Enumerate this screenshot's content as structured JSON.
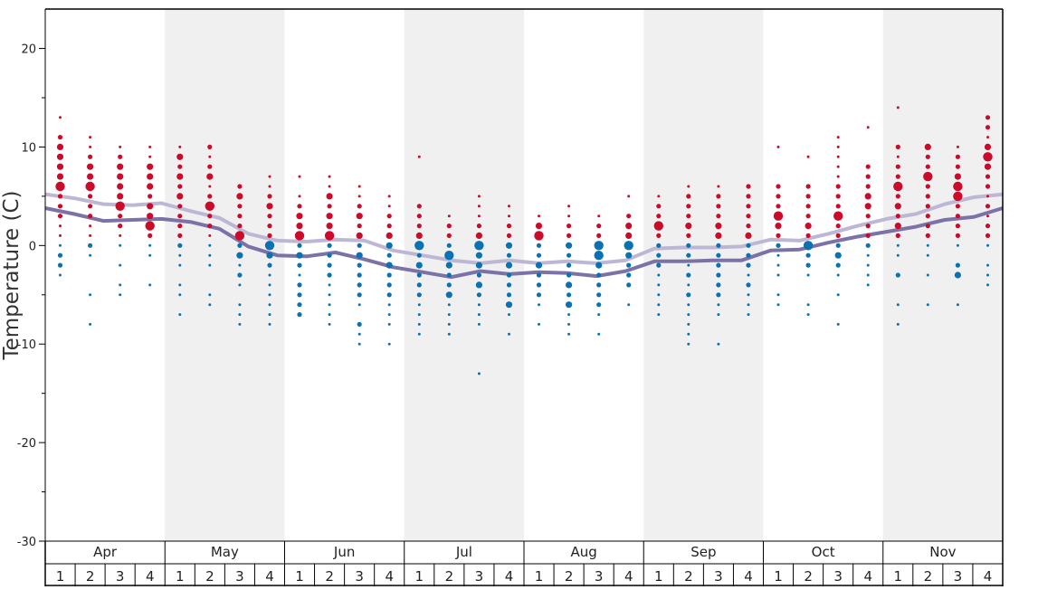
{
  "chart_data": {
    "type": "scatter",
    "ylabel": "Temperature (C)",
    "ylim": [
      -30,
      24
    ],
    "yticks": [
      20,
      10,
      0,
      -10,
      -20,
      -30
    ],
    "months": [
      "Apr",
      "May",
      "Jun",
      "Jul",
      "Aug",
      "Sep",
      "Oct",
      "Nov"
    ],
    "weeks": [
      "1",
      "2",
      "3",
      "4"
    ],
    "month_shading": [
      false,
      true,
      false,
      true,
      false,
      true,
      false,
      true
    ],
    "colors": {
      "warm": "#cc0a2a",
      "cold": "#0a72b3",
      "upper_line": "#bdb7d5",
      "lower_line": "#7d72a8",
      "shade": "#f0f0f0"
    },
    "upper_line": [
      5.2,
      4.8,
      4.2,
      4.1,
      4.3,
      3.5,
      2.8,
      1.2,
      0.5,
      0.4,
      0.6,
      0.5,
      -0.5,
      -1.0,
      -1.5,
      -1.8,
      -1.5,
      -1.8,
      -1.6,
      -1.8,
      -1.5,
      -0.3,
      -0.2,
      -0.2,
      -0.1,
      0.6,
      0.5,
      1.2,
      2.0,
      2.7,
      3.2,
      4.2,
      4.9,
      5.2
    ],
    "lower_line": [
      3.8,
      3.2,
      2.5,
      2.6,
      2.7,
      2.4,
      1.7,
      -0.1,
      -1.0,
      -1.1,
      -0.7,
      -1.4,
      -2.2,
      -2.7,
      -3.2,
      -2.6,
      -2.9,
      -2.7,
      -2.8,
      -3.1,
      -2.6,
      -1.6,
      -1.6,
      -1.5,
      -1.5,
      -0.5,
      -0.4,
      0.3,
      0.9,
      1.4,
      1.9,
      2.6,
      2.9,
      3.8
    ],
    "dot_columns": [
      {
        "w": "Apr 1",
        "warm": {
          "13": 1,
          "11": 2,
          "10": 3,
          "9": 3,
          "8": 3,
          "7": 3,
          "6": 4,
          "5": 2,
          "4": 2,
          "3": 2,
          "2": 1,
          "1": 1
        },
        "cold": {
          "0": 1,
          "-1": 2,
          "-2": 2,
          "-3": 1
        }
      },
      {
        "w": "Apr 2",
        "warm": {
          "11": 1,
          "10": 1,
          "9": 2,
          "8": 3,
          "7": 3,
          "6": 4,
          "5": 2,
          "4": 2,
          "3": 2,
          "2": 1,
          "1": 1
        },
        "cold": {
          "0": 2,
          "-1": 1,
          "-5": 1,
          "-8": 1
        }
      },
      {
        "w": "Apr 3",
        "warm": {
          "10": 1,
          "9": 2,
          "8": 3,
          "7": 3,
          "6": 3,
          "5": 3,
          "4": 4,
          "3": 2,
          "2": 2,
          "1": 1
        },
        "cold": {
          "0": 1,
          "-2": 1,
          "-4": 1,
          "-5": 1
        }
      },
      {
        "w": "Apr 4",
        "warm": {
          "10": 1,
          "9": 1,
          "8": 3,
          "7": 3,
          "6": 3,
          "5": 2,
          "4": 3,
          "3": 3,
          "2": 4,
          "1": 2
        },
        "cold": {
          "0": 1,
          "-1": 1,
          "-4": 1
        }
      },
      {
        "w": "May 1",
        "warm": {
          "10": 1,
          "9": 3,
          "8": 2,
          "7": 3,
          "6": 2,
          "5": 3,
          "4": 2,
          "3": 2,
          "2": 2,
          "1": 2
        },
        "cold": {
          "0": 2,
          "-1": 1,
          "-2": 1,
          "-4": 1,
          "-5": 1,
          "-7": 1
        }
      },
      {
        "w": "May 2",
        "warm": {
          "10": 2,
          "9": 1,
          "8": 2,
          "7": 3,
          "6": 1,
          "5": 2,
          "4": 4,
          "3": 2,
          "2": 2,
          "1": 1
        },
        "cold": {
          "0": 1,
          "-1": 1,
          "-2": 1,
          "-5": 1,
          "-6": 1
        }
      },
      {
        "w": "May 3",
        "warm": {
          "6": 2,
          "5": 3,
          "4": 2,
          "3": 2,
          "2": 2,
          "1": 4
        },
        "cold": {
          "0": 2,
          "-1": 3,
          "-2": 1,
          "-3": 2,
          "-4": 1,
          "-6": 1,
          "-7": 1,
          "-8": 1
        }
      },
      {
        "w": "May 4",
        "warm": {
          "7": 1,
          "6": 1,
          "5": 2,
          "4": 3,
          "3": 2,
          "2": 2,
          "1": 2
        },
        "cold": {
          "0": 4,
          "-1": 3,
          "-2": 2,
          "-3": 1,
          "-4": 1,
          "-5": 1,
          "-6": 1,
          "-7": 1,
          "-8": 1
        }
      },
      {
        "w": "Jun 1",
        "warm": {
          "7": 1,
          "5": 1,
          "4": 2,
          "3": 3,
          "2": 3,
          "1": 4
        },
        "cold": {
          "0": 2,
          "-1": 3,
          "-2": 2,
          "-3": 1,
          "-4": 2,
          "-5": 2,
          "-6": 2,
          "-7": 2
        }
      },
      {
        "w": "Jun 2",
        "warm": {
          "7": 1,
          "6": 1,
          "5": 3,
          "4": 2,
          "3": 3,
          "2": 3,
          "1": 4
        },
        "cold": {
          "0": 2,
          "-1": 2,
          "-2": 2,
          "-3": 2,
          "-4": 1,
          "-5": 1,
          "-6": 1,
          "-7": 1,
          "-8": 1
        }
      },
      {
        "w": "Jun 3",
        "warm": {
          "6": 1,
          "5": 1,
          "4": 2,
          "3": 3,
          "2": 2,
          "1": 3
        },
        "cold": {
          "0": 2,
          "-1": 3,
          "-2": 2,
          "-3": 2,
          "-4": 2,
          "-5": 2,
          "-6": 1,
          "-8": 2,
          "-9": 1,
          "-10": 1
        }
      },
      {
        "w": "Jun 4",
        "warm": {
          "5": 1,
          "4": 1,
          "3": 2,
          "2": 2,
          "1": 3
        },
        "cold": {
          "0": 3,
          "-1": 2,
          "-2": 3,
          "-3": 2,
          "-4": 2,
          "-5": 2,
          "-6": 1,
          "-7": 1,
          "-8": 1,
          "-10": 1
        }
      },
      {
        "w": "Jul 1",
        "warm": {
          "9": 1,
          "4": 2,
          "3": 2,
          "2": 2,
          "1": 3
        },
        "cold": {
          "0": 4,
          "-1": 2,
          "-2": 3,
          "-3": 2,
          "-4": 2,
          "-5": 2,
          "-6": 1,
          "-7": 1,
          "-8": 1,
          "-9": 1
        }
      },
      {
        "w": "Jul 2",
        "warm": {
          "3": 1,
          "2": 2,
          "1": 2
        },
        "cold": {
          "0": 2,
          "-1": 4,
          "-2": 3,
          "-3": 2,
          "-4": 2,
          "-5": 3,
          "-6": 1,
          "-7": 1,
          "-8": 1,
          "-9": 1
        }
      },
      {
        "w": "Jul 3",
        "warm": {
          "5": 1,
          "4": 1,
          "3": 1,
          "2": 2,
          "1": 3
        },
        "cold": {
          "0": 4,
          "-1": 3,
          "-2": 3,
          "-3": 2,
          "-4": 3,
          "-5": 2,
          "-6": 1,
          "-7": 1,
          "-8": 1,
          "-13": 1
        }
      },
      {
        "w": "Jul 4",
        "warm": {
          "4": 1,
          "3": 1,
          "2": 2,
          "1": 2
        },
        "cold": {
          "0": 3,
          "-1": 2,
          "-2": 3,
          "-3": 2,
          "-4": 2,
          "-5": 2,
          "-6": 3,
          "-7": 1,
          "-9": 1
        }
      },
      {
        "w": "Aug 1",
        "warm": {
          "3": 1,
          "2": 3,
          "1": 4
        },
        "cold": {
          "0": 2,
          "-1": 2,
          "-2": 3,
          "-3": 2,
          "-4": 2,
          "-5": 2,
          "-6": 1,
          "-8": 1
        }
      },
      {
        "w": "Aug 2",
        "warm": {
          "4": 1,
          "3": 1,
          "2": 2,
          "1": 2
        },
        "cold": {
          "0": 3,
          "-1": 2,
          "-2": 2,
          "-3": 2,
          "-4": 3,
          "-5": 2,
          "-6": 3,
          "-7": 1,
          "-8": 1,
          "-9": 1
        }
      },
      {
        "w": "Aug 3",
        "warm": {
          "3": 1,
          "2": 2,
          "1": 2
        },
        "cold": {
          "0": 4,
          "-1": 4,
          "-2": 3,
          "-3": 2,
          "-4": 2,
          "-5": 2,
          "-6": 2,
          "-7": 1,
          "-9": 1
        }
      },
      {
        "w": "Aug 4",
        "warm": {
          "5": 1,
          "3": 2,
          "2": 3,
          "1": 3
        },
        "cold": {
          "0": 4,
          "-1": 3,
          "-2": 2,
          "-3": 2,
          "-4": 2,
          "-6": 1
        }
      },
      {
        "w": "Sep 1",
        "warm": {
          "5": 1,
          "4": 2,
          "3": 2,
          "2": 4,
          "1": 2
        },
        "cold": {
          "0": 2,
          "-1": 2,
          "-2": 2,
          "-3": 1,
          "-4": 1,
          "-5": 1,
          "-6": 1,
          "-7": 1
        }
      },
      {
        "w": "Sep 2",
        "warm": {
          "6": 1,
          "5": 2,
          "4": 2,
          "3": 2,
          "2": 3,
          "1": 2
        },
        "cold": {
          "0": 2,
          "-1": 2,
          "-2": 1,
          "-3": 2,
          "-4": 1,
          "-5": 2,
          "-6": 1,
          "-7": 1,
          "-8": 1,
          "-9": 1,
          "-10": 1
        }
      },
      {
        "w": "Sep 3",
        "warm": {
          "6": 1,
          "5": 2,
          "4": 2,
          "3": 2,
          "2": 3,
          "1": 3
        },
        "cold": {
          "0": 2,
          "-1": 2,
          "-2": 2,
          "-3": 2,
          "-4": 2,
          "-5": 2,
          "-6": 1,
          "-7": 1,
          "-10": 1
        }
      },
      {
        "w": "Sep 4",
        "warm": {
          "6": 2,
          "5": 2,
          "4": 2,
          "3": 2,
          "2": 2,
          "1": 3
        },
        "cold": {
          "0": 2,
          "-1": 2,
          "-2": 2,
          "-3": 1,
          "-4": 2,
          "-5": 1,
          "-6": 1,
          "-7": 1
        }
      },
      {
        "w": "Oct 1",
        "warm": {
          "10": 1,
          "6": 2,
          "5": 2,
          "4": 2,
          "3": 4,
          "2": 3,
          "1": 2
        },
        "cold": {
          "0": 2,
          "-1": 1,
          "-2": 1,
          "-3": 1,
          "-5": 1,
          "-6": 1
        }
      },
      {
        "w": "Oct 2",
        "warm": {
          "9": 1,
          "6": 2,
          "5": 2,
          "4": 2,
          "3": 2,
          "2": 3,
          "1": 2
        },
        "cold": {
          "0": 4,
          "-1": 2,
          "-2": 2,
          "-3": 1,
          "-6": 1,
          "-7": 1
        }
      },
      {
        "w": "Oct 3",
        "warm": {
          "11": 1,
          "10": 1,
          "9": 1,
          "8": 1,
          "7": 1,
          "6": 2,
          "5": 2,
          "4": 2,
          "3": 4,
          "2": 2,
          "1": 2
        },
        "cold": {
          "0": 2,
          "-1": 3,
          "-2": 2,
          "-3": 1,
          "-5": 1,
          "-8": 1
        }
      },
      {
        "w": "Oct 4",
        "warm": {
          "12": 1,
          "8": 2,
          "7": 2,
          "6": 2,
          "5": 3,
          "4": 3,
          "3": 2,
          "2": 2,
          "1": 2
        },
        "cold": {
          "0": 2,
          "-1": 1,
          "-2": 1,
          "-3": 1,
          "-4": 1
        }
      },
      {
        "w": "Nov 1",
        "warm": {
          "14": 1,
          "10": 2,
          "9": 1,
          "8": 2,
          "7": 2,
          "6": 4,
          "5": 2,
          "4": 3,
          "3": 2,
          "2": 3,
          "1": 2
        },
        "cold": {
          "0": 1,
          "-1": 1,
          "-3": 2,
          "-6": 1,
          "-8": 1
        }
      },
      {
        "w": "Nov 2",
        "warm": {
          "10": 3,
          "9": 2,
          "8": 2,
          "7": 4,
          "6": 2,
          "5": 2,
          "4": 2,
          "3": 2,
          "2": 2,
          "1": 2
        },
        "cold": {
          "0": 1,
          "-1": 1,
          "-3": 1,
          "-6": 1
        }
      },
      {
        "w": "Nov 3",
        "warm": {
          "10": 1,
          "9": 2,
          "8": 2,
          "7": 3,
          "6": 4,
          "5": 4,
          "4": 2,
          "3": 2,
          "2": 2,
          "1": 2
        },
        "cold": {
          "0": 1,
          "-2": 2,
          "-3": 3,
          "-6": 1
        }
      },
      {
        "w": "Nov 4",
        "warm": {
          "13": 2,
          "12": 2,
          "11": 1,
          "10": 3,
          "9": 4,
          "8": 3,
          "7": 2,
          "6": 2,
          "5": 1,
          "4": 2,
          "3": 1,
          "2": 2,
          "1": 2
        },
        "cold": {
          "0": 1,
          "-2": 1,
          "-3": 1,
          "-4": 1
        }
      }
    ]
  }
}
